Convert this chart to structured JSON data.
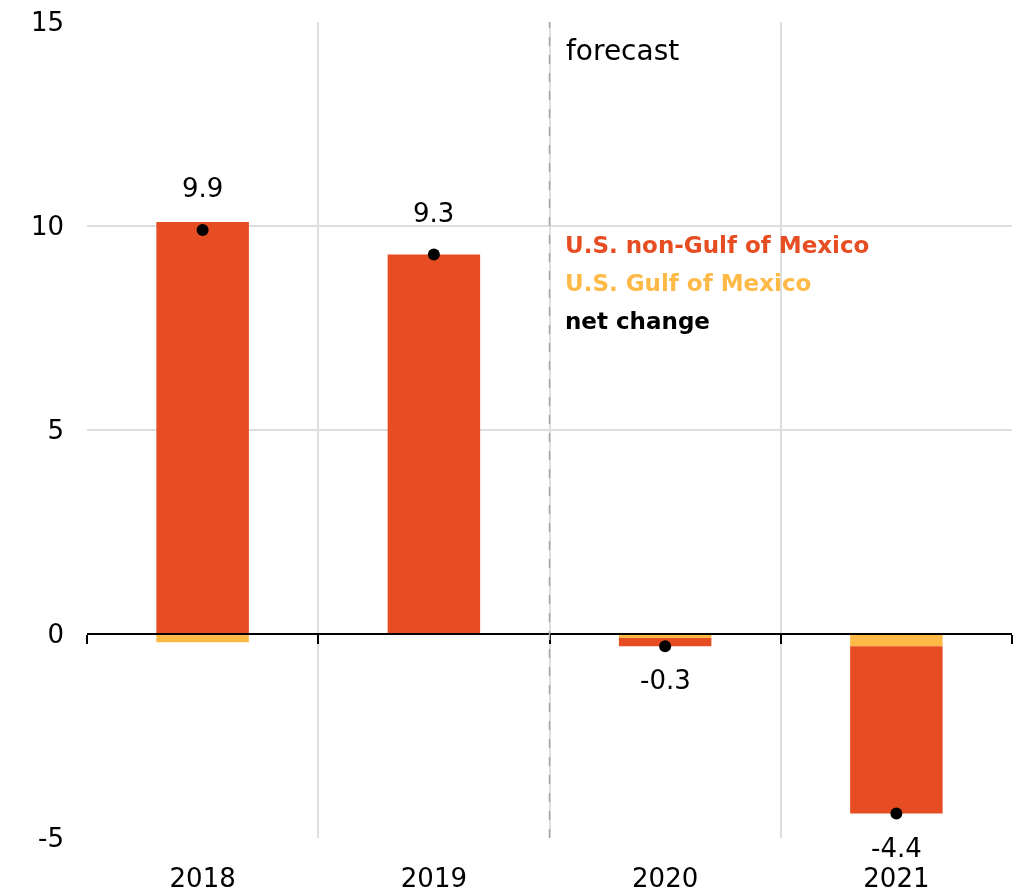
{
  "chart_data": {
    "type": "bar",
    "x": [
      2018,
      2019,
      2020,
      2021
    ],
    "xlim": [
      2017.5,
      2021.5
    ],
    "xticks": [
      2018,
      2019,
      2020,
      2021
    ],
    "ylim": [
      -5,
      15
    ],
    "yticks": [
      -5,
      0,
      5,
      10,
      15
    ],
    "stacked": true,
    "grid": true,
    "legend": "top right",
    "marker": "circle",
    "series": [
      {
        "name": "U.S. Gulf of Mexico",
        "color": "#ffb946",
        "values": [
          -0.2,
          0,
          -0.1,
          -0.3
        ]
      },
      {
        "name": "U.S. non-Gulf of Mexico",
        "color": "#e64d23",
        "values": [
          10.1,
          9.3,
          -0.2,
          -4.1
        ]
      },
      {
        "name": "net change",
        "type": "scatter",
        "color": "#000000",
        "values": [
          9.9,
          9.3,
          -0.3,
          -4.4
        ],
        "value_labels": [
          "9.9",
          "9.3",
          "-0.3",
          "-4.4"
        ]
      }
    ],
    "ref_lines": [
      {
        "axis": "x",
        "value": 2019.5,
        "label": "forecast",
        "color": "#a6a6a6",
        "line_style": "dashed"
      }
    ]
  }
}
